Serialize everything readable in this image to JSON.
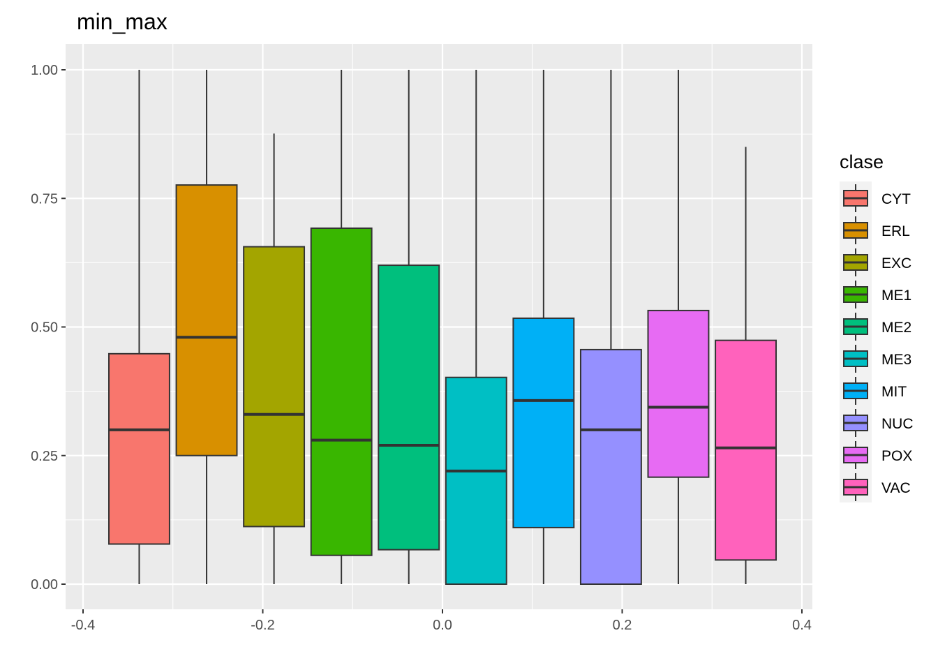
{
  "chart_data": {
    "type": "boxplot",
    "title": "min_max",
    "xlabel": "",
    "ylabel": "",
    "xlim": [
      -0.4,
      0.4
    ],
    "ylim": [
      0,
      1
    ],
    "x_ticks": [
      "-0.4",
      "-0.2",
      "0.0",
      "0.2",
      "0.4"
    ],
    "y_ticks": [
      "0.00",
      "0.25",
      "0.50",
      "0.75",
      "1.00"
    ],
    "grid": true,
    "legend": {
      "title": "clase",
      "placement": "right"
    },
    "series": [
      {
        "name": "CYT",
        "color": "#F8766D",
        "min": 0.0,
        "q1": 0.078,
        "median": 0.3,
        "q3": 0.448,
        "max": 1.0
      },
      {
        "name": "ERL",
        "color": "#D89000",
        "min": 0.0,
        "q1": 0.25,
        "median": 0.48,
        "q3": 0.776,
        "max": 1.0
      },
      {
        "name": "EXC",
        "color": "#A3A500",
        "min": 0.0,
        "q1": 0.112,
        "median": 0.33,
        "q3": 0.656,
        "max": 0.876
      },
      {
        "name": "ME1",
        "color": "#39B600",
        "min": 0.0,
        "q1": 0.056,
        "median": 0.28,
        "q3": 0.692,
        "max": 1.0
      },
      {
        "name": "ME2",
        "color": "#00BF7D",
        "min": 0.0,
        "q1": 0.067,
        "median": 0.27,
        "q3": 0.62,
        "max": 1.0
      },
      {
        "name": "ME3",
        "color": "#00BFC4",
        "min": 0.0,
        "q1": 0.0,
        "median": 0.22,
        "q3": 0.402,
        "max": 1.0
      },
      {
        "name": "MIT",
        "color": "#00B0F6",
        "min": 0.0,
        "q1": 0.11,
        "median": 0.357,
        "q3": 0.517,
        "max": 1.0
      },
      {
        "name": "NUC",
        "color": "#9590FF",
        "min": 0.0,
        "q1": 0.0,
        "median": 0.3,
        "q3": 0.456,
        "max": 1.0
      },
      {
        "name": "POX",
        "color": "#E76BF3",
        "min": 0.0,
        "q1": 0.208,
        "median": 0.344,
        "q3": 0.532,
        "max": 1.0
      },
      {
        "name": "VAC",
        "color": "#FF62BC",
        "min": 0.0,
        "q1": 0.047,
        "median": 0.265,
        "q3": 0.474,
        "max": 0.85
      }
    ]
  }
}
